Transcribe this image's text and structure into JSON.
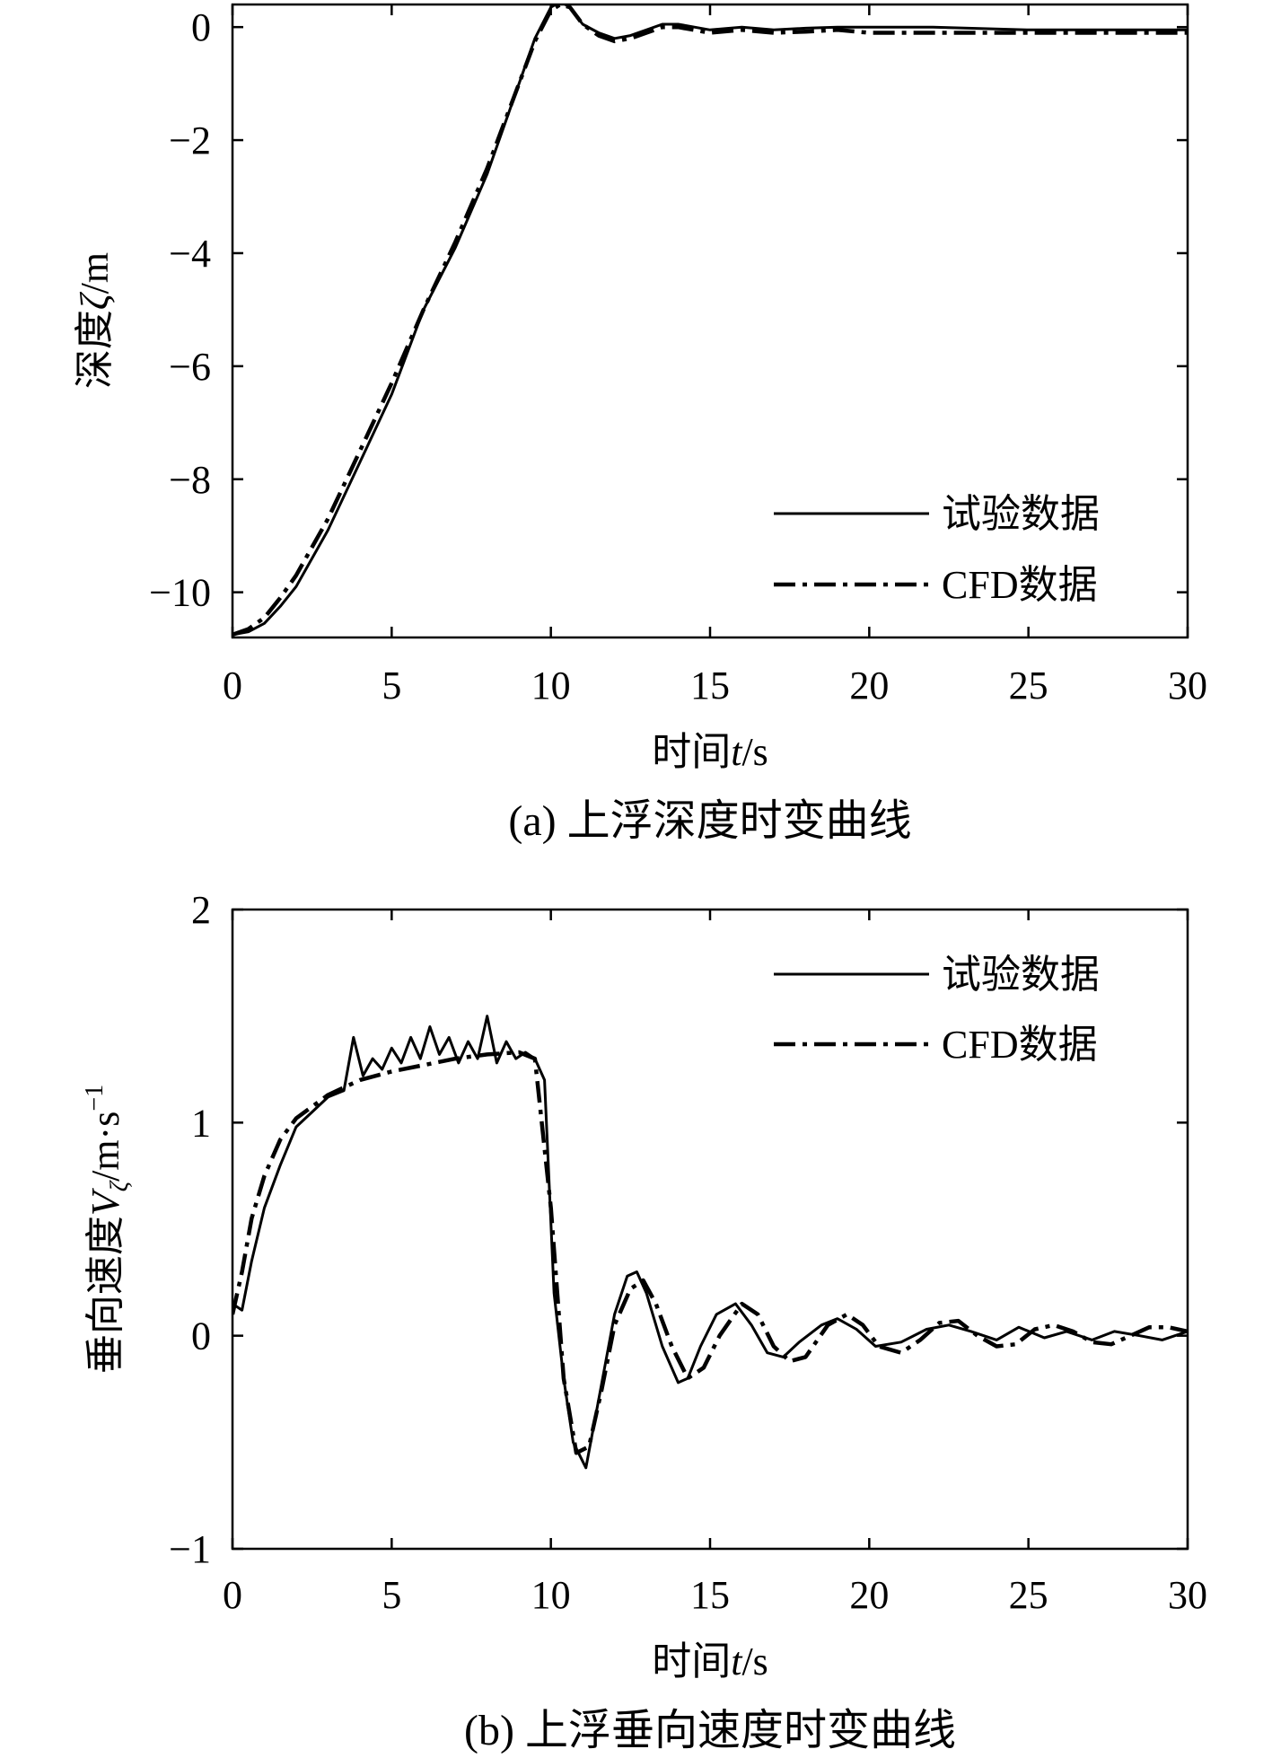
{
  "chart_data": [
    {
      "type": "line",
      "caption": "(a) 上浮深度时变曲线",
      "xlabel": {
        "prefix": "时间",
        "var": "t",
        "unit": "/s"
      },
      "ylabel": {
        "prefix": "深度",
        "var": "ζ",
        "unit": "/m"
      },
      "xlim": [
        0,
        30
      ],
      "ylim": [
        -10.8,
        0.4
      ],
      "xticks": [
        0,
        5,
        10,
        15,
        20,
        25,
        30
      ],
      "yticks": [
        0,
        -2,
        -4,
        -6,
        -8,
        -10
      ],
      "xtick_labels": [
        "0",
        "5",
        "10",
        "15",
        "20",
        "25",
        "30"
      ],
      "ytick_labels": [
        "0",
        "−2",
        "−4",
        "−6",
        "−8",
        "−10"
      ],
      "grid": false,
      "legend_position": "bottom-right",
      "series": [
        {
          "name": "试验数据",
          "style": "solid",
          "x": [
            0,
            0.5,
            1,
            1.5,
            2,
            3,
            4,
            5,
            6,
            7,
            8,
            9,
            9.5,
            10,
            10.3,
            10.6,
            11,
            11.5,
            12,
            12.5,
            13,
            13.5,
            14,
            15,
            16,
            17,
            18,
            19,
            20,
            22,
            25,
            28,
            30
          ],
          "y": [
            -10.75,
            -10.7,
            -10.55,
            -10.25,
            -9.9,
            -8.9,
            -7.7,
            -6.5,
            -5.0,
            -3.9,
            -2.6,
            -1.0,
            -0.2,
            0.35,
            0.45,
            0.35,
            0.05,
            -0.1,
            -0.2,
            -0.15,
            -0.05,
            0.05,
            0.05,
            -0.05,
            0.0,
            -0.05,
            -0.02,
            0.0,
            0.0,
            0.0,
            -0.05,
            -0.05,
            -0.05
          ]
        },
        {
          "name": "CFD数据",
          "style": "dashdot",
          "x": [
            0,
            0.5,
            1,
            1.5,
            2,
            3,
            4,
            5,
            6,
            7,
            8,
            9,
            9.5,
            10,
            10.3,
            10.6,
            11,
            11.5,
            12,
            12.5,
            13,
            13.5,
            14,
            15,
            16,
            17,
            18,
            19,
            20,
            22,
            25,
            28,
            30
          ],
          "y": [
            -10.75,
            -10.65,
            -10.45,
            -10.1,
            -9.7,
            -8.7,
            -7.5,
            -6.3,
            -5.0,
            -3.8,
            -2.5,
            -1.0,
            -0.25,
            0.3,
            0.4,
            0.35,
            0.05,
            -0.15,
            -0.25,
            -0.2,
            -0.1,
            0.0,
            0.0,
            -0.1,
            -0.05,
            -0.1,
            -0.08,
            -0.05,
            -0.1,
            -0.1,
            -0.1,
            -0.1,
            -0.1
          ]
        }
      ]
    },
    {
      "type": "line",
      "caption": "(b) 上浮垂向速度时变曲线",
      "xlabel": {
        "prefix": "时间",
        "var": "t",
        "unit": "/s"
      },
      "ylabel": {
        "prefix": "垂向速度",
        "var": "V",
        "sub": "ζ",
        "unit": "/m·s",
        "sup": "−1"
      },
      "xlim": [
        0,
        30
      ],
      "ylim": [
        -1,
        2
      ],
      "xticks": [
        0,
        5,
        10,
        15,
        20,
        25,
        30
      ],
      "yticks": [
        -1,
        0,
        1,
        2
      ],
      "xtick_labels": [
        "0",
        "5",
        "10",
        "15",
        "20",
        "25",
        "30"
      ],
      "ytick_labels": [
        "−1",
        "0",
        "1",
        "2"
      ],
      "grid": false,
      "legend_position": "top-right",
      "series": [
        {
          "name": "试验数据",
          "style": "solid",
          "x": [
            0,
            0.3,
            0.6,
            1,
            1.5,
            2,
            2.5,
            3,
            3.5,
            3.8,
            4.1,
            4.4,
            4.7,
            5,
            5.3,
            5.6,
            5.9,
            6.2,
            6.5,
            6.8,
            7.1,
            7.4,
            7.7,
            8.0,
            8.3,
            8.6,
            8.9,
            9.2,
            9.5,
            9.8,
            10.1,
            10.4,
            10.7,
            11.1,
            11.5,
            12.0,
            12.4,
            12.7,
            13.0,
            13.5,
            14.0,
            14.3,
            14.7,
            15.2,
            15.8,
            16.3,
            16.8,
            17.3,
            17.8,
            18.5,
            19.0,
            19.6,
            20.2,
            21.0,
            21.8,
            22.5,
            23.2,
            24.0,
            24.7,
            25.5,
            26.2,
            27.0,
            27.7,
            28.5,
            29.2,
            30.0
          ],
          "y": [
            0.15,
            0.12,
            0.35,
            0.6,
            0.8,
            0.98,
            1.05,
            1.12,
            1.15,
            1.4,
            1.22,
            1.3,
            1.25,
            1.35,
            1.28,
            1.4,
            1.3,
            1.45,
            1.32,
            1.4,
            1.28,
            1.38,
            1.3,
            1.5,
            1.28,
            1.38,
            1.3,
            1.33,
            1.3,
            1.2,
            0.2,
            -0.2,
            -0.5,
            -0.62,
            -0.3,
            0.1,
            0.28,
            0.3,
            0.2,
            -0.05,
            -0.22,
            -0.2,
            -0.05,
            0.1,
            0.15,
            0.05,
            -0.08,
            -0.1,
            -0.03,
            0.05,
            0.08,
            0.03,
            -0.05,
            -0.03,
            0.03,
            0.05,
            0.02,
            -0.02,
            0.04,
            -0.01,
            0.02,
            -0.02,
            0.02,
            0.0,
            -0.02,
            0.02
          ]
        },
        {
          "name": "CFD数据",
          "style": "dashdot",
          "x": [
            0,
            0.3,
            0.6,
            1,
            1.5,
            2,
            3,
            4,
            5,
            6,
            7,
            8,
            9,
            9.5,
            10.0,
            10.4,
            10.8,
            11.2,
            11.6,
            12.0,
            12.5,
            12.9,
            13.3,
            13.8,
            14.3,
            14.8,
            15.3,
            16.0,
            16.5,
            17.0,
            17.5,
            18.0,
            18.7,
            19.3,
            19.8,
            20.3,
            21.0,
            21.6,
            22.2,
            22.8,
            23.4,
            24.0,
            24.6,
            25.2,
            25.8,
            26.4,
            27.0,
            27.6,
            28.2,
            28.8,
            29.4,
            30.0
          ],
          "y": [
            0.1,
            0.3,
            0.55,
            0.75,
            0.92,
            1.02,
            1.13,
            1.2,
            1.24,
            1.27,
            1.3,
            1.32,
            1.33,
            1.3,
            0.6,
            -0.2,
            -0.55,
            -0.52,
            -0.25,
            0.05,
            0.22,
            0.26,
            0.15,
            -0.05,
            -0.2,
            -0.15,
            0.0,
            0.15,
            0.1,
            -0.05,
            -0.12,
            -0.1,
            0.05,
            0.1,
            0.05,
            -0.05,
            -0.08,
            -0.02,
            0.06,
            0.07,
            0.0,
            -0.05,
            -0.04,
            0.03,
            0.05,
            0.02,
            -0.03,
            -0.04,
            0.0,
            0.04,
            0.04,
            0.02
          ]
        }
      ]
    }
  ]
}
